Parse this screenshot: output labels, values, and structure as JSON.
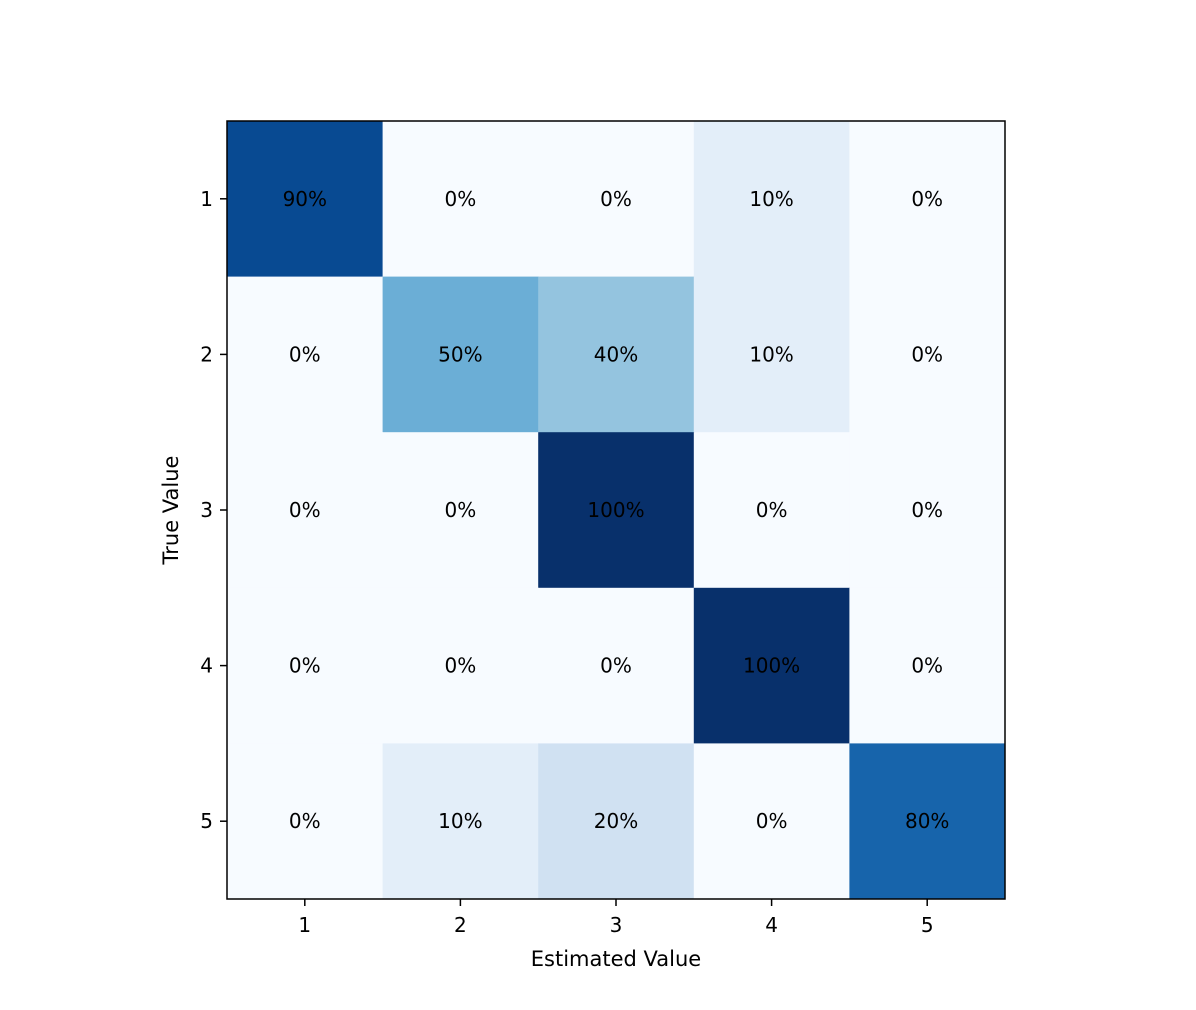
{
  "chart_data": {
    "type": "heatmap",
    "title": "",
    "xlabel": "Estimated Value",
    "ylabel": "True Value",
    "x_categories": [
      "1",
      "2",
      "3",
      "4",
      "5"
    ],
    "y_categories": [
      "1",
      "2",
      "3",
      "4",
      "5"
    ],
    "values": [
      [
        90,
        0,
        0,
        10,
        0
      ],
      [
        0,
        50,
        40,
        10,
        0
      ],
      [
        0,
        0,
        100,
        0,
        0
      ],
      [
        0,
        0,
        0,
        100,
        0
      ],
      [
        0,
        10,
        20,
        0,
        80
      ]
    ],
    "value_suffix": "%",
    "colormap": "Blues",
    "color_range": [
      0,
      100
    ],
    "grid": false,
    "legend": "none",
    "colors": {
      "low": "#f7fbff",
      "high": "#08306b",
      "text": "#000000",
      "axis": "#000000"
    }
  }
}
